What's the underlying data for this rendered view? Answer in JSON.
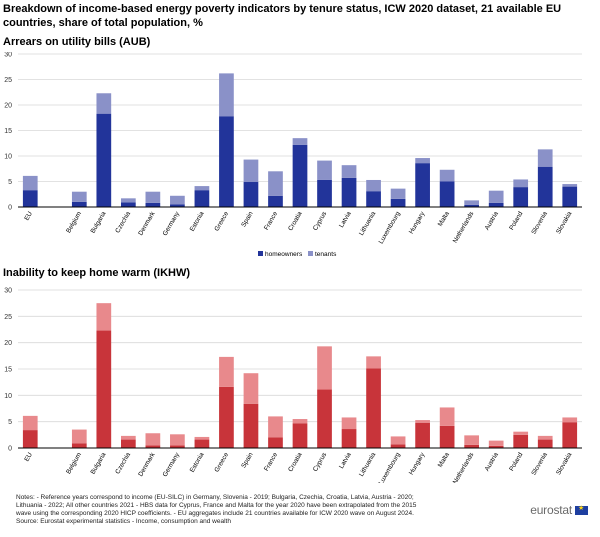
{
  "title": "Breakdown of income-based energy poverty indicators by tenure status, ICW 2020 dataset, 21 available EU countries, share of total population, %",
  "chart_data": [
    {
      "type": "bar",
      "stacked": true,
      "title": "Arrears on utility bills (AUB)",
      "categories": [
        "EU",
        "",
        "Belgium",
        "Bulgaria",
        "Czechia",
        "Denmark",
        "Germany",
        "Estonia",
        "Greece",
        "Spain",
        "France",
        "Croatia",
        "Cyprus",
        "Latvia",
        "Lithuania",
        "Luxembourg",
        "Hungary",
        "Malta",
        "Netherlands",
        "Austria",
        "Poland",
        "Slovenia",
        "Slovakia"
      ],
      "series": [
        {
          "name": "homeowners",
          "color": "#22349a",
          "values": [
            3.3,
            null,
            1.0,
            18.3,
            0.9,
            0.8,
            0.5,
            3.3,
            17.8,
            4.9,
            2.2,
            12.2,
            5.3,
            5.7,
            3.1,
            1.6,
            8.6,
            5.0,
            0.4,
            0.8,
            3.9,
            7.9,
            4.0
          ]
        },
        {
          "name": "tenants",
          "color": "#8a91c8",
          "values": [
            2.8,
            null,
            2.0,
            4.0,
            0.8,
            2.2,
            1.7,
            0.8,
            8.4,
            4.4,
            4.8,
            1.3,
            3.8,
            2.5,
            2.2,
            2.0,
            1.0,
            2.3,
            0.9,
            2.4,
            1.5,
            3.4,
            0.5
          ]
        }
      ],
      "ylim": [
        0,
        30
      ],
      "yticks": [
        0,
        5,
        10,
        15,
        20,
        25,
        30
      ],
      "grid": true,
      "legend_position": "bottom-center"
    },
    {
      "type": "bar",
      "stacked": true,
      "title": "Inability to keep home warm (IKHW)",
      "categories": [
        "EU",
        "",
        "Belgium",
        "Bulgaria",
        "Czechia",
        "Denmark",
        "Germany",
        "Estonia",
        "Greece",
        "Spain",
        "France",
        "Croatia",
        "Cyprus",
        "Latvia",
        "Lithuania",
        "Luxembourg",
        "Hungary",
        "Malta",
        "Netherlands",
        "Austria",
        "Poland",
        "Slovenia",
        "Slovakia"
      ],
      "series": [
        {
          "name": "homeowners",
          "color": "#c8343a",
          "values": [
            3.4,
            null,
            0.9,
            22.3,
            1.6,
            0.5,
            0.5,
            1.6,
            11.6,
            8.4,
            2.0,
            4.7,
            11.1,
            3.6,
            15.1,
            0.7,
            4.8,
            4.2,
            0.6,
            0.4,
            2.5,
            1.6,
            4.9
          ]
        },
        {
          "name": "tenants",
          "color": "#e8898c",
          "values": [
            2.7,
            null,
            2.6,
            5.2,
            0.7,
            2.3,
            2.1,
            0.5,
            5.7,
            5.8,
            4.0,
            0.8,
            8.2,
            2.2,
            2.3,
            1.5,
            0.5,
            3.5,
            1.8,
            1.0,
            0.6,
            0.7,
            0.9
          ]
        }
      ],
      "ylim": [
        0,
        30
      ],
      "yticks": [
        0,
        5,
        10,
        15,
        20,
        25,
        30
      ],
      "grid": true
    }
  ],
  "notes": [
    "Notes:  - Reference years correspond to income (EU-SILC) in Germany, Slovenia - 2019; Bulgaria, Czechia, Croatia, Latvia, Austria - 2020;",
    "Lithuania - 2022; All other countries 2021  - HBS data for Cyprus, France and Malta for the year 2020 have been extrapolated from the 2015",
    "wave using the corresponding 2020 HICP coefficients.  - EU aggregates include 21 countries available for ICW 2020 wave on August 2024.",
    "Source: Eurostat experimental statistics - Income, consumption and wealth"
  ],
  "logo_text": "eurostat",
  "grid_color": "#d9d9d9",
  "axis_color": "#000000"
}
